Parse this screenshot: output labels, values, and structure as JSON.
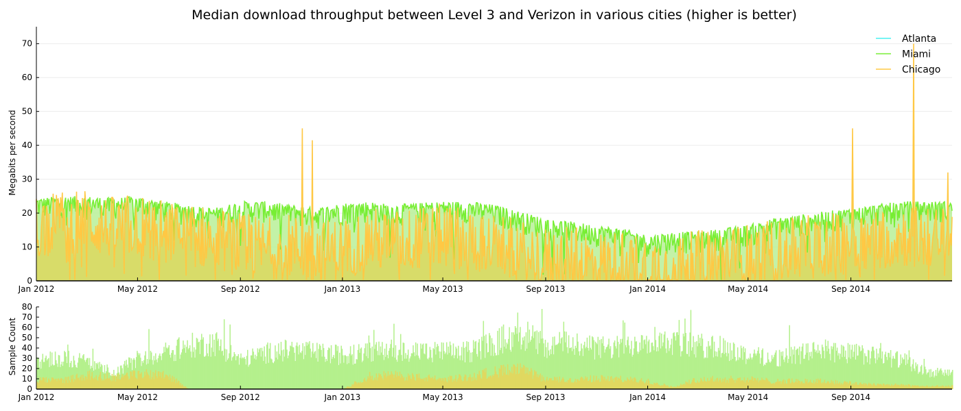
{
  "chart_data": [
    {
      "type": "line",
      "title": "Median download throughput between Level 3 and Verizon in various cities (higher is better)",
      "xlabel": "",
      "ylabel": "Megabits per second",
      "x_range": [
        "2012-01-01",
        "2014-12-31"
      ],
      "ylim": [
        0,
        75
      ],
      "yticks": [
        0,
        10,
        20,
        30,
        40,
        50,
        60,
        70
      ],
      "xtick_labels": [
        "Jan 2012",
        "May 2012",
        "Sep 2012",
        "Jan 2013",
        "May 2013",
        "Sep 2013",
        "Jan 2014",
        "May 2014",
        "Sep 2014"
      ],
      "grid": true,
      "legend_position": "top-right",
      "series": [
        {
          "name": "Atlanta",
          "color": "#48f0f0",
          "x": [],
          "y": []
        },
        {
          "name": "Miami",
          "color": "#77ee33",
          "x": [
            "2012-01-01",
            "2012-02-01",
            "2012-03-01",
            "2012-04-01",
            "2012-05-01",
            "2012-06-01",
            "2012-07-01",
            "2012-08-01",
            "2012-09-01",
            "2012-10-01",
            "2012-11-01",
            "2012-12-01",
            "2013-01-01",
            "2013-02-01",
            "2013-03-01",
            "2013-04-01",
            "2013-05-01",
            "2013-06-01",
            "2013-07-01",
            "2013-08-01",
            "2013-09-01",
            "2013-10-01",
            "2013-11-01",
            "2013-12-01",
            "2014-01-01",
            "2014-02-01",
            "2014-03-01",
            "2014-04-01",
            "2014-05-01",
            "2014-06-01",
            "2014-07-01",
            "2014-08-01",
            "2014-09-01",
            "2014-10-01",
            "2014-11-01",
            "2014-12-01"
          ],
          "y": [
            23,
            23.5,
            23.5,
            23,
            23.5,
            22,
            21,
            20,
            22,
            22,
            21,
            20,
            21.5,
            22,
            21,
            21.5,
            22,
            22,
            21,
            19,
            17,
            16,
            15,
            14,
            12,
            13,
            13,
            14,
            15,
            17,
            18,
            19,
            20,
            21,
            22,
            22
          ]
        },
        {
          "name": "Chicago",
          "color": "#ffc844",
          "x": [
            "2012-01-01",
            "2012-02-01",
            "2012-03-01",
            "2012-04-01",
            "2012-05-01",
            "2012-06-01",
            "2012-07-01",
            "2012-08-01",
            "2012-09-01",
            "2012-10-01",
            "2012-11-01",
            "2012-12-01",
            "2013-01-01",
            "2013-02-01",
            "2013-03-01",
            "2013-04-01",
            "2013-05-01",
            "2013-06-01",
            "2013-07-01",
            "2013-08-01",
            "2013-09-01",
            "2013-10-01",
            "2013-11-01",
            "2013-12-01",
            "2014-01-01",
            "2014-02-01",
            "2014-03-01",
            "2014-04-01",
            "2014-05-01",
            "2014-06-01",
            "2014-07-01",
            "2014-08-01",
            "2014-09-01",
            "2014-10-01",
            "2014-11-01",
            "2014-12-01"
          ],
          "y": [
            16,
            17,
            17,
            15,
            16,
            14,
            13,
            12,
            10,
            9,
            10,
            8,
            9,
            12,
            11,
            12,
            13,
            12,
            10,
            8,
            6,
            6,
            5,
            5,
            4,
            4,
            5,
            6,
            7,
            8,
            9,
            10,
            11,
            12,
            13,
            12
          ],
          "spikes": [
            {
              "x": "2012-11-14",
              "y": 45
            },
            {
              "x": "2012-11-26",
              "y": 41.5
            },
            {
              "x": "2014-09-03",
              "y": 45
            },
            {
              "x": "2014-11-15",
              "y": 70
            },
            {
              "x": "2014-12-26",
              "y": 32
            }
          ]
        }
      ]
    },
    {
      "type": "bar",
      "title": "",
      "xlabel": "",
      "ylabel": "Sample Count",
      "x_range": [
        "2012-01-01",
        "2014-12-31"
      ],
      "ylim": [
        0,
        80
      ],
      "yticks": [
        0,
        10,
        20,
        30,
        40,
        50,
        60,
        70,
        80
      ],
      "xtick_labels": [
        "Jan 2012",
        "May 2012",
        "Sep 2012",
        "Jan 2013",
        "May 2013",
        "Sep 2013",
        "Jan 2014",
        "May 2014",
        "Sep 2014"
      ],
      "grid": false,
      "series": [
        {
          "name": "Miami",
          "color": "#b4f08c",
          "x": [
            "2012-01-01",
            "2012-02-01",
            "2012-03-01",
            "2012-04-01",
            "2012-05-01",
            "2012-06-01",
            "2012-07-01",
            "2012-08-01",
            "2012-09-01",
            "2012-10-01",
            "2012-11-01",
            "2012-12-01",
            "2013-01-01",
            "2013-02-01",
            "2013-03-01",
            "2013-04-01",
            "2013-05-01",
            "2013-06-01",
            "2013-07-01",
            "2013-08-01",
            "2013-09-01",
            "2013-10-01",
            "2013-11-01",
            "2013-12-01",
            "2014-01-01",
            "2014-02-01",
            "2014-03-01",
            "2014-04-01",
            "2014-05-01",
            "2014-06-01",
            "2014-07-01",
            "2014-08-01",
            "2014-09-01",
            "2014-10-01",
            "2014-11-01",
            "2014-12-01"
          ],
          "y": [
            28,
            30,
            27,
            14,
            30,
            35,
            42,
            45,
            28,
            35,
            38,
            35,
            33,
            35,
            38,
            35,
            36,
            36,
            45,
            55,
            42,
            45,
            40,
            40,
            50,
            45,
            42,
            40,
            33,
            30,
            34,
            38,
            35,
            32,
            28,
            16
          ]
        },
        {
          "name": "Chicago",
          "color": "#e0d860",
          "x": [
            "2012-01-01",
            "2012-02-01",
            "2012-03-01",
            "2012-04-01",
            "2012-05-01",
            "2012-06-01",
            "2012-07-01",
            "2012-08-01",
            "2012-09-01",
            "2012-10-01",
            "2012-11-01",
            "2012-12-01",
            "2013-01-01",
            "2013-02-01",
            "2013-03-01",
            "2013-04-01",
            "2013-05-01",
            "2013-06-01",
            "2013-07-01",
            "2013-08-01",
            "2013-09-01",
            "2013-10-01",
            "2013-11-01",
            "2013-12-01",
            "2014-01-01",
            "2014-02-01",
            "2014-03-01",
            "2014-04-01",
            "2014-05-01",
            "2014-06-01",
            "2014-07-01",
            "2014-08-01",
            "2014-09-01",
            "2014-10-01",
            "2014-11-01",
            "2014-12-01"
          ],
          "y": [
            9,
            9,
            14,
            12,
            15,
            16,
            0,
            0,
            0,
            0,
            0,
            0,
            0,
            13,
            14,
            12,
            10,
            12,
            18,
            20,
            10,
            9,
            11,
            10,
            8,
            2,
            10,
            10,
            10,
            8,
            8,
            8,
            6,
            5,
            4,
            3
          ]
        }
      ]
    }
  ]
}
